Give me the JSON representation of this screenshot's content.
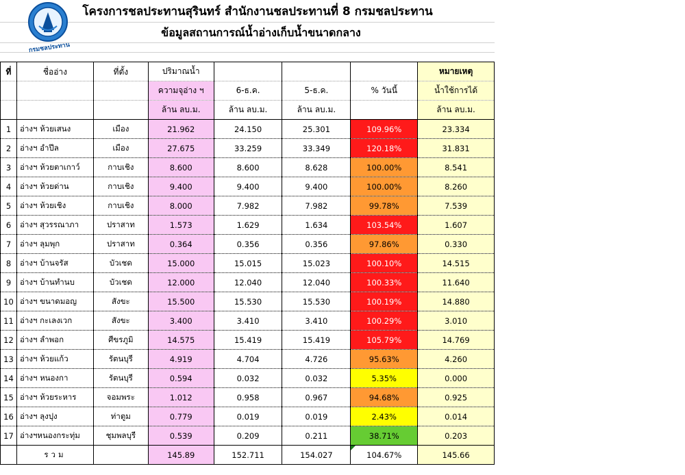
{
  "header": {
    "title": "โครงการชลประทานสุรินทร์ สำนักงานชลประทานที่ 8 กรมชลประทาน",
    "subtitle": "ข้อมูลสถานการณ์น้ำอ่างเก็บน้ำขนาดกลาง",
    "logo_text": "กรมชลประทาน"
  },
  "colors": {
    "red": "#ff1a1a",
    "orange": "#ff9933",
    "yellow": "#ffff00",
    "green": "#66cc33",
    "pink": "#f9c8f3",
    "cream": "#ffffcc"
  },
  "columns": {
    "no": "ที่",
    "name": "ชื่ออ่าง",
    "location": "ที่ตั้ง",
    "volume": "ปริมาณน้ำ",
    "capacity": "ความจุอ่าง ฯ",
    "capacity_unit": "ล้าน ลบ.ม.",
    "date1": "6-ธ.ค.",
    "date1_unit": "ล้าน ลบ.ม.",
    "date2": "5-ธ.ค.",
    "date2_unit": "ล้าน ลบ.ม.",
    "pct_today": "% วันนี้",
    "remark": "หมายเหตุ",
    "usable": "น้ำใช้การได้",
    "usable_unit": "ล้าน ลบ.ม."
  },
  "rows": [
    {
      "no": "1",
      "name": "อ่างฯ ห้วยเสนง",
      "location": "เมือง",
      "capacity": "21.962",
      "d1": "24.150",
      "d2": "25.301",
      "pct": "109.96%",
      "level": "red",
      "usable": "23.334"
    },
    {
      "no": "2",
      "name": "อ่างฯ อำปึล",
      "location": "เมือง",
      "capacity": "27.675",
      "d1": "33.259",
      "d2": "33.349",
      "pct": "120.18%",
      "level": "red",
      "usable": "31.831"
    },
    {
      "no": "3",
      "name": "อ่างฯ ห้วยตาเกาว์",
      "location": "กาบเชิง",
      "capacity": "8.600",
      "d1": "8.600",
      "d2": "8.628",
      "pct": "100.00%",
      "level": "orange",
      "usable": "8.541"
    },
    {
      "no": "4",
      "name": "อ่างฯ ห้วยด่าน",
      "location": "กาบเชิง",
      "capacity": "9.400",
      "d1": "9.400",
      "d2": "9.400",
      "pct": "100.00%",
      "level": "orange",
      "usable": "8.260"
    },
    {
      "no": "5",
      "name": "อ่างฯ ห้วยเชิง",
      "location": "กาบเชิง",
      "capacity": "8.000",
      "d1": "7.982",
      "d2": "7.982",
      "pct": "99.78%",
      "level": "orange",
      "usable": "7.539"
    },
    {
      "no": "6",
      "name": "อ่างฯ สุวรรณาภา",
      "location": "ปราสาท",
      "capacity": "1.573",
      "d1": "1.629",
      "d2": "1.634",
      "pct": "103.54%",
      "level": "red",
      "usable": "1.607"
    },
    {
      "no": "7",
      "name": "อ่างฯ ลุมพุก",
      "location": "ปราสาท",
      "capacity": "0.364",
      "d1": "0.356",
      "d2": "0.356",
      "pct": "97.86%",
      "level": "orange",
      "usable": "0.330"
    },
    {
      "no": "8",
      "name": "อ่างฯ บ้านจรัส",
      "location": "บัวเชด",
      "capacity": "15.000",
      "d1": "15.015",
      "d2": "15.023",
      "pct": "100.10%",
      "level": "red",
      "usable": "14.515"
    },
    {
      "no": "9",
      "name": "อ่างฯ บ้านทำนบ",
      "location": "บัวเชด",
      "capacity": "12.000",
      "d1": "12.040",
      "d2": "12.040",
      "pct": "100.33%",
      "level": "red",
      "usable": "11.640"
    },
    {
      "no": "10",
      "name": "อ่างฯ ขนาดมอญ",
      "location": "สังขะ",
      "capacity": "15.500",
      "d1": "15.530",
      "d2": "15.530",
      "pct": "100.19%",
      "level": "red",
      "usable": "14.880"
    },
    {
      "no": "11",
      "name": "อ่างฯ กะเลงเวก",
      "location": "สังขะ",
      "capacity": "3.400",
      "d1": "3.410",
      "d2": "3.410",
      "pct": "100.29%",
      "level": "red",
      "usable": "3.010"
    },
    {
      "no": "12",
      "name": "อ่างฯ ลำพอก",
      "location": "ศีขรภูมิ",
      "capacity": "14.575",
      "d1": "15.419",
      "d2": "15.419",
      "pct": "105.79%",
      "level": "red",
      "usable": "14.769"
    },
    {
      "no": "13",
      "name": "อ่างฯ ห้วยแก้ว",
      "location": "รัตนบุรี",
      "capacity": "4.919",
      "d1": "4.704",
      "d2": "4.726",
      "pct": "95.63%",
      "level": "orange",
      "usable": "4.260"
    },
    {
      "no": "14",
      "name": "อ่างฯ หนองกา",
      "location": "รัตนบุรี",
      "capacity": "0.594",
      "d1": "0.032",
      "d2": "0.032",
      "pct": "5.35%",
      "level": "yellow",
      "usable": "0.000"
    },
    {
      "no": "15",
      "name": "อ่างฯ ห้วยระหาร",
      "location": "จอมพระ",
      "capacity": "1.012",
      "d1": "0.958",
      "d2": "0.967",
      "pct": "94.68%",
      "level": "orange",
      "usable": "0.925"
    },
    {
      "no": "16",
      "name": "อ่างฯ ลุงปุง",
      "location": "ท่าตูม",
      "capacity": "0.779",
      "d1": "0.019",
      "d2": "0.019",
      "pct": "2.43%",
      "level": "yellow",
      "usable": "0.014"
    },
    {
      "no": "17",
      "name": "อ่างฯหนองกระทุ่ม",
      "location": "ชุมพลบุรี",
      "capacity": "0.539",
      "d1": "0.209",
      "d2": "0.211",
      "pct": "38.71%",
      "level": "green",
      "usable": "0.203"
    }
  ],
  "total": {
    "label": "รวม",
    "capacity": "145.89",
    "d1": "152.711",
    "d2": "154.027",
    "pct": "104.67%",
    "usable": "145.66"
  }
}
